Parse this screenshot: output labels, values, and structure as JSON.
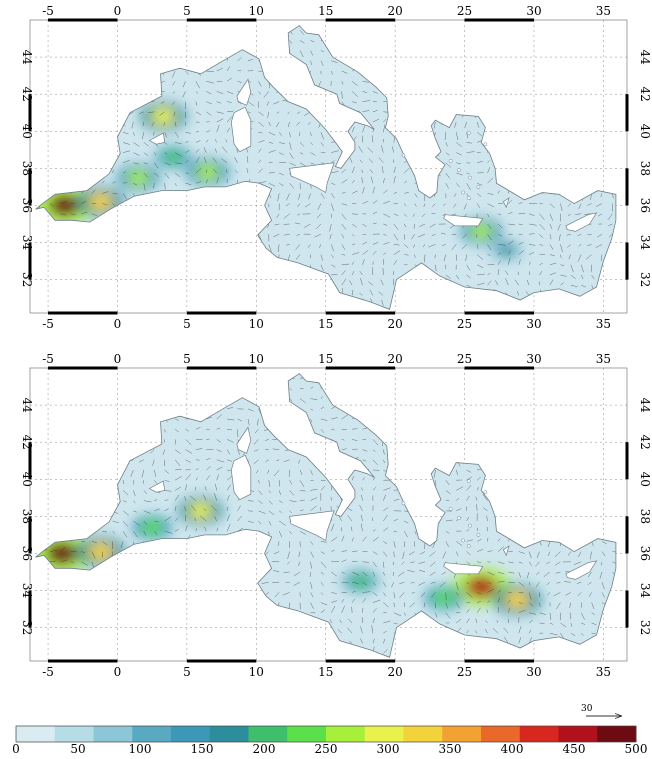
{
  "colors": {
    "sea_base": "#cfe6ee",
    "coast": "#6f7f86",
    "arrow": "#222222",
    "frame": "#000000",
    "grid": "#8a8a8a"
  },
  "maps": [
    {
      "name": "top",
      "lon_ticks": [
        "-5",
        "0",
        "5",
        "10",
        "15",
        "20",
        "25",
        "30",
        "35"
      ],
      "lat_ticks": [
        "32",
        "34",
        "36",
        "38",
        "40",
        "42",
        "44"
      ],
      "hotspots": [
        {
          "lon": -3.8,
          "lat": 36.0,
          "value": 480
        },
        {
          "lon": -1.2,
          "lat": 36.2,
          "value": 320
        },
        {
          "lon": 3.3,
          "lat": 40.8,
          "value": 310
        },
        {
          "lon": 1.5,
          "lat": 37.5,
          "value": 270
        },
        {
          "lon": 6.5,
          "lat": 37.8,
          "value": 280
        },
        {
          "lon": 4.0,
          "lat": 38.6,
          "value": 210
        },
        {
          "lon": 26.2,
          "lat": 34.6,
          "value": 260
        },
        {
          "lon": 28.0,
          "lat": 33.6,
          "value": 170
        }
      ]
    },
    {
      "name": "bottom",
      "lon_ticks": [
        "-5",
        "0",
        "5",
        "10",
        "15",
        "20",
        "25",
        "30",
        "35"
      ],
      "lat_ticks": [
        "32",
        "34",
        "36",
        "38",
        "40",
        "42",
        "44"
      ],
      "hotspots": [
        {
          "lon": -4.0,
          "lat": 36.0,
          "value": 490
        },
        {
          "lon": -1.2,
          "lat": 36.1,
          "value": 330
        },
        {
          "lon": 6.0,
          "lat": 38.3,
          "value": 290
        },
        {
          "lon": 2.5,
          "lat": 37.4,
          "value": 240
        },
        {
          "lon": 26.2,
          "lat": 34.2,
          "value": 460
        },
        {
          "lon": 28.8,
          "lat": 33.5,
          "value": 330
        },
        {
          "lon": 23.5,
          "lat": 33.6,
          "value": 230
        },
        {
          "lon": 17.5,
          "lat": 34.5,
          "value": 200
        }
      ]
    }
  ],
  "colorbar": {
    "min": 0,
    "max": 500,
    "tick_labels": [
      "0",
      "50",
      "100",
      "150",
      "200",
      "250",
      "300",
      "350",
      "400",
      "450",
      "500"
    ],
    "stops": [
      "#d8ecf2",
      "#b6dce6",
      "#8dc6d6",
      "#5aa9c2",
      "#3d97b6",
      "#2c8e9c",
      "#3fbf6b",
      "#5be04b",
      "#a6ef3a",
      "#e9f24a",
      "#f4d23a",
      "#f2a232",
      "#e9682a",
      "#d8271f",
      "#b0111a",
      "#6d0a12"
    ]
  },
  "reference_vector": {
    "label": "30"
  }
}
